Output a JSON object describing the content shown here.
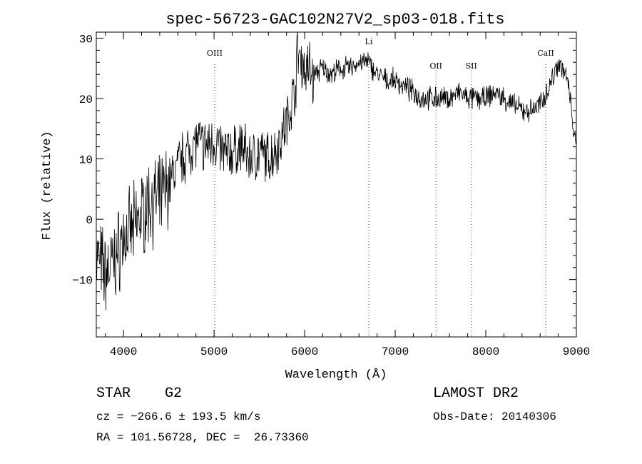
{
  "chart_data": {
    "type": "line",
    "title": "spec-56723-GAC102N27V2_sp03-018.fits",
    "xlabel": "Wavelength (Å)",
    "ylabel": "Flux (relative)",
    "xlim": [
      3700,
      9000
    ],
    "ylim": [
      -19.5,
      31
    ],
    "xticks": [
      4000,
      5000,
      6000,
      7000,
      8000,
      9000
    ],
    "yticks": [
      -10,
      0,
      10,
      20,
      30
    ],
    "ytick_labels": [
      "−10",
      "0",
      "10",
      "20",
      "30"
    ],
    "grid": false,
    "lines": [
      {
        "label": "OIII",
        "x": 5007
      },
      {
        "label": "Li",
        "x": 6708
      },
      {
        "label": "OII",
        "x": 7450
      },
      {
        "label": "SII",
        "x": 7840
      },
      {
        "label": "CaII",
        "x": 8662
      }
    ],
    "series": [
      {
        "x": [
          3700,
          3800,
          3900,
          4000,
          4100,
          4200,
          4300,
          4400,
          4500,
          4600,
          4700,
          4800,
          4900,
          5000,
          5100,
          5200,
          5300,
          5400,
          5500,
          5600,
          5700,
          5800,
          5900,
          5920,
          6000,
          6100,
          6200,
          6300,
          6400,
          6500,
          6600,
          6700,
          6800,
          6900,
          7000,
          7100,
          7200,
          7300,
          7400,
          7500,
          7600,
          7700,
          7800,
          7900,
          8000,
          8100,
          8200,
          8300,
          8400,
          8500,
          8600,
          8700,
          8800,
          8850,
          8900,
          8950,
          8980,
          9000
        ],
        "y": [
          -6,
          -9,
          -7,
          -3,
          -2,
          1,
          3,
          3,
          6,
          9,
          11,
          13,
          12,
          13,
          11,
          11,
          12,
          10,
          11,
          10,
          12,
          16,
          22,
          28,
          25,
          24,
          25,
          24,
          25,
          25,
          26,
          26,
          24,
          23,
          23,
          22,
          21,
          20,
          20,
          20,
          20,
          21,
          20,
          20,
          20,
          21,
          20,
          19,
          18,
          18,
          19,
          22,
          26,
          25,
          23,
          18,
          13,
          12
        ]
      }
    ]
  },
  "info": {
    "class_line": "STAR    G2",
    "survey": "LAMOST DR2",
    "cz_line": "cz = −266.6 ± 193.5 km/s",
    "obs_date": "Obs-Date: 20140306",
    "coords_line": "RA = 101.56728, DEC =  26.73360"
  }
}
